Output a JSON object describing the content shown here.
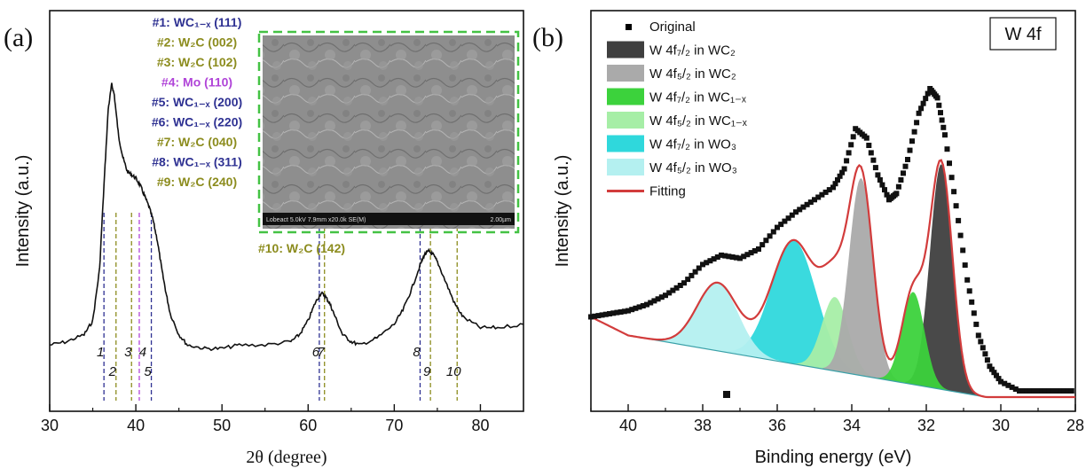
{
  "panel_a": {
    "label": "(a)",
    "peak_labels": [
      {
        "text": "#1: WC₁₋ₓ (111)",
        "color": "#2e3192"
      },
      {
        "text": "#2: W₂C (002)",
        "color": "#8c8c1e"
      },
      {
        "text": "#3: W₂C (102)",
        "color": "#8c8c1e"
      },
      {
        "text": "#4: Mo (110)",
        "color": "#b044d8"
      },
      {
        "text": "#5: WC₁₋ₓ (200)",
        "color": "#2e3192"
      },
      {
        "text": "#6: WC₁₋ₓ (220)",
        "color": "#2e3192"
      },
      {
        "text": "#7: W₂C (040)",
        "color": "#8c8c1e"
      },
      {
        "text": "#8: WC₁₋ₓ (311)",
        "color": "#2e3192"
      },
      {
        "text": "#9: W₂C (240)",
        "color": "#8c8c1e"
      },
      {
        "text": "#10: W₂C (142)",
        "color": "#8c8c1e"
      }
    ],
    "inset_caption_left": "Lobeact 5.0kV 7.9mm x20.0k SE(M)",
    "inset_caption_right": "2.00µm"
  },
  "panel_b": {
    "label": "(b)",
    "box_label": "W 4f",
    "legend": [
      {
        "text": "Original",
        "kind": "marker",
        "color": "#000000"
      },
      {
        "text": "W 4f₇/₂ in WC₂",
        "kind": "box",
        "color": "#3f3f3f"
      },
      {
        "text": "W 4f₅/₂ in WC₂",
        "kind": "box",
        "color": "#aaaaaa"
      },
      {
        "text": "W 4f₇/₂ in WC₁₋ₓ",
        "kind": "box",
        "color": "#3cd23c"
      },
      {
        "text": "W 4f₅/₂ in WC₁₋ₓ",
        "kind": "box",
        "color": "#a6eea6"
      },
      {
        "text": "W 4f₇/₂ in WO₃",
        "kind": "box",
        "color": "#2fd8dc"
      },
      {
        "text": "W 4f₅/₂ in WO₃",
        "kind": "box",
        "color": "#b4f0f0"
      },
      {
        "text": "Fitting",
        "kind": "line",
        "color": "#d23c3c"
      }
    ]
  },
  "chart_data": [
    {
      "type": "line",
      "xlabel": "2θ (degree)",
      "ylabel": "Intensity (a.u.)",
      "xlim": [
        30,
        85
      ],
      "ylim": [
        0,
        1
      ],
      "x_ticks": [
        30,
        40,
        50,
        60,
        70,
        80
      ],
      "grid": false,
      "series": [
        {
          "x": [
            30,
            32,
            34,
            35,
            35.8,
            36.3,
            36.8,
            37.2,
            37.5,
            38,
            38.5,
            39,
            39.5,
            40,
            40.5,
            41,
            41.5,
            42,
            42.5,
            43,
            43.5,
            44,
            45,
            46,
            48,
            50,
            52,
            55,
            58,
            59,
            60,
            60.8,
            61.5,
            62,
            62.5,
            63,
            64,
            65,
            66,
            68,
            70,
            71,
            72,
            73,
            73.5,
            74,
            74.5,
            75,
            76,
            77,
            78,
            80,
            82,
            85
          ],
          "y": [
            0.16,
            0.17,
            0.19,
            0.23,
            0.38,
            0.62,
            0.84,
            0.91,
            0.88,
            0.76,
            0.7,
            0.66,
            0.65,
            0.64,
            0.62,
            0.59,
            0.56,
            0.52,
            0.46,
            0.38,
            0.31,
            0.25,
            0.19,
            0.16,
            0.15,
            0.15,
            0.16,
            0.16,
            0.17,
            0.19,
            0.23,
            0.28,
            0.31,
            0.3,
            0.28,
            0.25,
            0.19,
            0.17,
            0.16,
            0.18,
            0.22,
            0.26,
            0.32,
            0.39,
            0.42,
            0.43,
            0.42,
            0.4,
            0.34,
            0.28,
            0.24,
            0.21,
            0.21,
            0.22
          ]
        }
      ],
      "reference_lines": [
        {
          "label": "1",
          "x": 36.3,
          "color": "#2e3192"
        },
        {
          "label": "2",
          "x": 37.7,
          "color": "#8c8c1e"
        },
        {
          "label": "3",
          "x": 39.5,
          "color": "#8c8c1e"
        },
        {
          "label": "4",
          "x": 40.4,
          "color": "#b044d8"
        },
        {
          "label": "5",
          "x": 41.8,
          "color": "#2e3192"
        },
        {
          "label": "6",
          "x": 61.3,
          "color": "#2e3192"
        },
        {
          "label": "7",
          "x": 61.9,
          "color": "#8c8c1e"
        },
        {
          "label": "8",
          "x": 73.0,
          "color": "#2e3192"
        },
        {
          "label": "9",
          "x": 74.2,
          "color": "#8c8c1e"
        },
        {
          "label": "10",
          "x": 77.3,
          "color": "#8c8c1e"
        }
      ]
    },
    {
      "type": "area",
      "xlabel": "Binding energy (eV)",
      "ylabel": "Intensity (a.u.)",
      "xlim": [
        41,
        28
      ],
      "ylim": [
        0,
        1
      ],
      "x_ticks": [
        40,
        38,
        36,
        34,
        32,
        30,
        28
      ],
      "reversed_x": true,
      "grid": false,
      "background": {
        "x": [
          40.0,
          30.4
        ],
        "y": [
          0.2,
          0.0
        ]
      },
      "components": [
        {
          "name": "W 4f₇/₂ in WC₂",
          "center": 31.6,
          "height": 0.73,
          "width": 0.3,
          "color": "#3f3f3f"
        },
        {
          "name": "W 4f₅/₂ in WC₂",
          "center": 33.75,
          "height": 0.64,
          "width": 0.32,
          "color": "#aaaaaa"
        },
        {
          "name": "W 4f₇/₂ in WC₁₋ₓ",
          "center": 32.35,
          "height": 0.3,
          "width": 0.3,
          "color": "#3cd23c"
        },
        {
          "name": "W 4f₅/₂ in WC₁₋ₓ",
          "center": 34.45,
          "height": 0.24,
          "width": 0.35,
          "color": "#a6eea6"
        },
        {
          "name": "W 4f₇/₂ in WO₃",
          "center": 35.55,
          "height": 0.4,
          "width": 0.6,
          "color": "#2fd8dc"
        },
        {
          "name": "W 4f₅/₂ in WO₃",
          "center": 37.6,
          "height": 0.22,
          "width": 0.55,
          "color": "#b4f0f0"
        }
      ],
      "series": [
        {
          "name": "Original",
          "x": [
            41,
            40.5,
            40,
            39.5,
            39,
            38.5,
            38,
            37.5,
            37,
            36.5,
            36,
            35.5,
            35,
            34.5,
            34.2,
            33.9,
            33.6,
            33.3,
            33.0,
            32.8,
            32.5,
            32.2,
            31.9,
            31.7,
            31.5,
            31.2,
            30.9,
            30.6,
            30.3,
            30,
            29.5,
            29,
            28.5,
            28
          ],
          "y": [
            0.26,
            0.27,
            0.28,
            0.3,
            0.33,
            0.37,
            0.43,
            0.46,
            0.45,
            0.48,
            0.55,
            0.6,
            0.64,
            0.68,
            0.74,
            0.87,
            0.84,
            0.72,
            0.64,
            0.66,
            0.77,
            0.92,
            1.0,
            0.97,
            0.85,
            0.62,
            0.38,
            0.2,
            0.1,
            0.05,
            0.02,
            0.02,
            0.02,
            0.02
          ]
        }
      ]
    }
  ]
}
